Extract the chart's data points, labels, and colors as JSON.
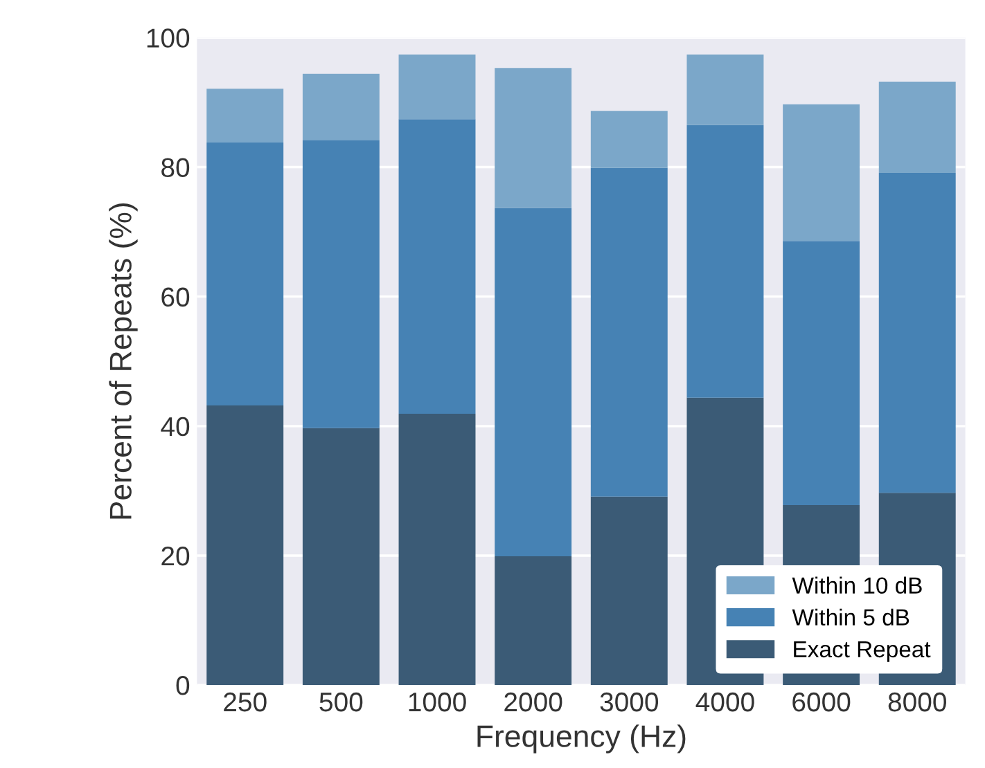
{
  "chart_data": {
    "type": "bar",
    "stacked": true,
    "xlabel": "Frequency (Hz)",
    "ylabel": "Percent of Repeats (%)",
    "categories": [
      "250",
      "500",
      "1000",
      "2000",
      "3000",
      "4000",
      "6000",
      "8000"
    ],
    "series": [
      {
        "name": "Exact Repeat",
        "color": "#3b5b76",
        "values": [
          43.2,
          39.7,
          41.9,
          19.9,
          29.1,
          44.4,
          27.8,
          29.7
        ]
      },
      {
        "name": "Within 5 dB",
        "color": "#4682b4",
        "values": [
          40.6,
          44.5,
          45.5,
          53.8,
          50.8,
          42.1,
          40.8,
          49.4
        ]
      },
      {
        "name": "Within 10 dB",
        "color": "#7ba7c9",
        "values": [
          8.3,
          10.2,
          10.0,
          21.6,
          8.8,
          10.9,
          21.1,
          14.1
        ]
      }
    ],
    "ylim": [
      0,
      100
    ],
    "yticks": [
      0,
      20,
      40,
      60,
      80,
      100
    ],
    "grid": "y",
    "legend": "bottom right"
  }
}
